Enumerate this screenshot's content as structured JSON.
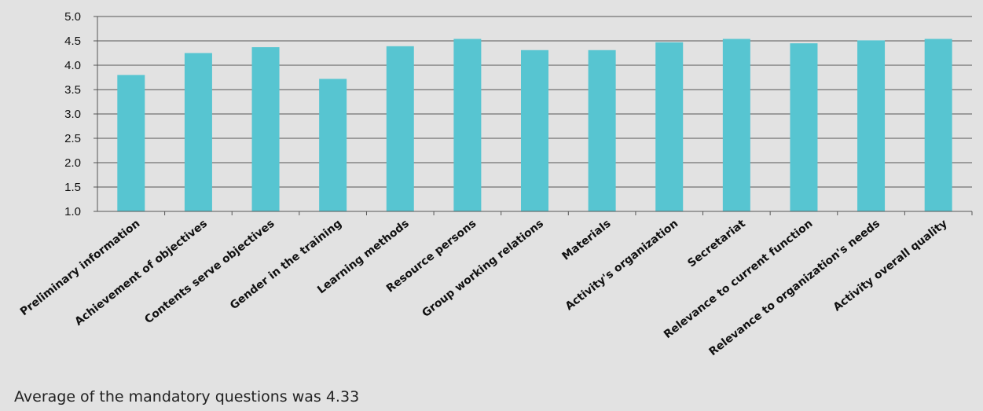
{
  "chart_data": {
    "type": "bar",
    "categories": [
      "Preliminary information",
      "Achievement of objectives",
      "Contents serve objectives",
      "Gender in the training",
      "Learning methods",
      "Resource persons",
      "Group working relations",
      "Materials",
      "Activity's organization",
      "Secretariat",
      "Relevance to current function",
      "Relevance to organization's needs",
      "Activity overall quality"
    ],
    "values": [
      3.8,
      4.25,
      4.37,
      3.72,
      4.39,
      4.54,
      4.31,
      4.31,
      4.47,
      4.54,
      4.45,
      4.51,
      4.54
    ],
    "ylim": [
      1.0,
      5.0
    ],
    "yticks": [
      "1.0",
      "1.5",
      "2.0",
      "2.5",
      "3.0",
      "3.5",
      "4.0",
      "4.5",
      "5.0"
    ],
    "grid": true,
    "legend": "none",
    "bar_color": "#57c5d1"
  },
  "caption": "Average of the mandatory questions was 4.33"
}
